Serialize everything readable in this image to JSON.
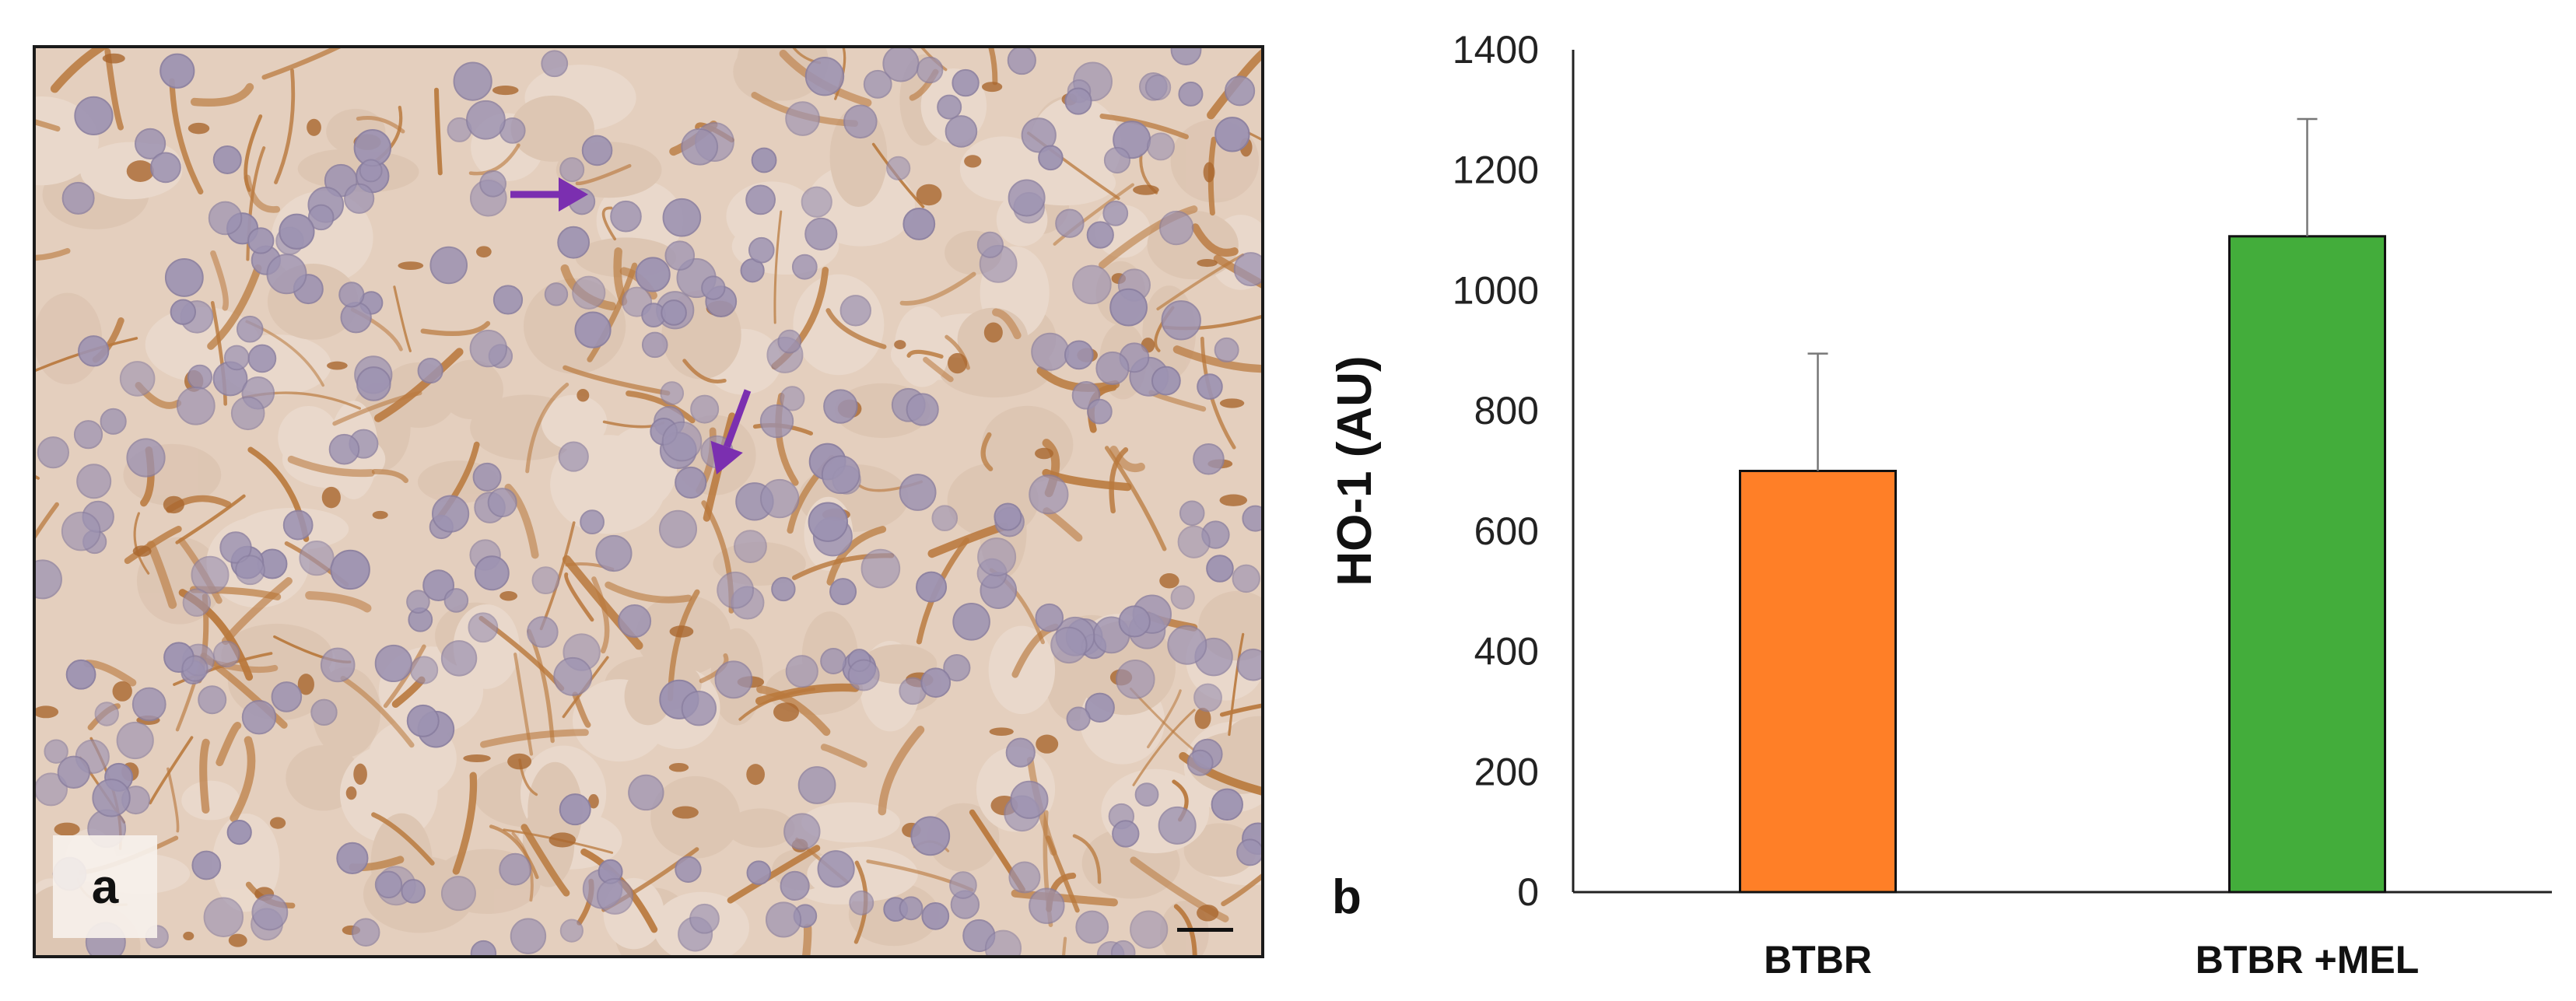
{
  "panels": {
    "a": {
      "label": "a"
    },
    "b": {
      "label": "b"
    }
  },
  "colors": {
    "stroma": "#b9793d",
    "nuclei": "#9d93b2",
    "arrow": "#7b2fb0"
  },
  "chart_data": {
    "type": "bar",
    "categories": [
      "BTBR",
      "BTBR +MEL"
    ],
    "values": [
      700,
      1090
    ],
    "errors": [
      195,
      195
    ],
    "bar_colors": [
      "#ff7f27",
      "#43ad3b"
    ],
    "ylabel": "HO-1 (AU)",
    "xlabel": "",
    "title": "",
    "ylim": [
      0,
      1400
    ],
    "yticks": [
      0,
      200,
      400,
      600,
      800,
      1000,
      1200,
      1400
    ],
    "grid": false,
    "legend": "none"
  }
}
